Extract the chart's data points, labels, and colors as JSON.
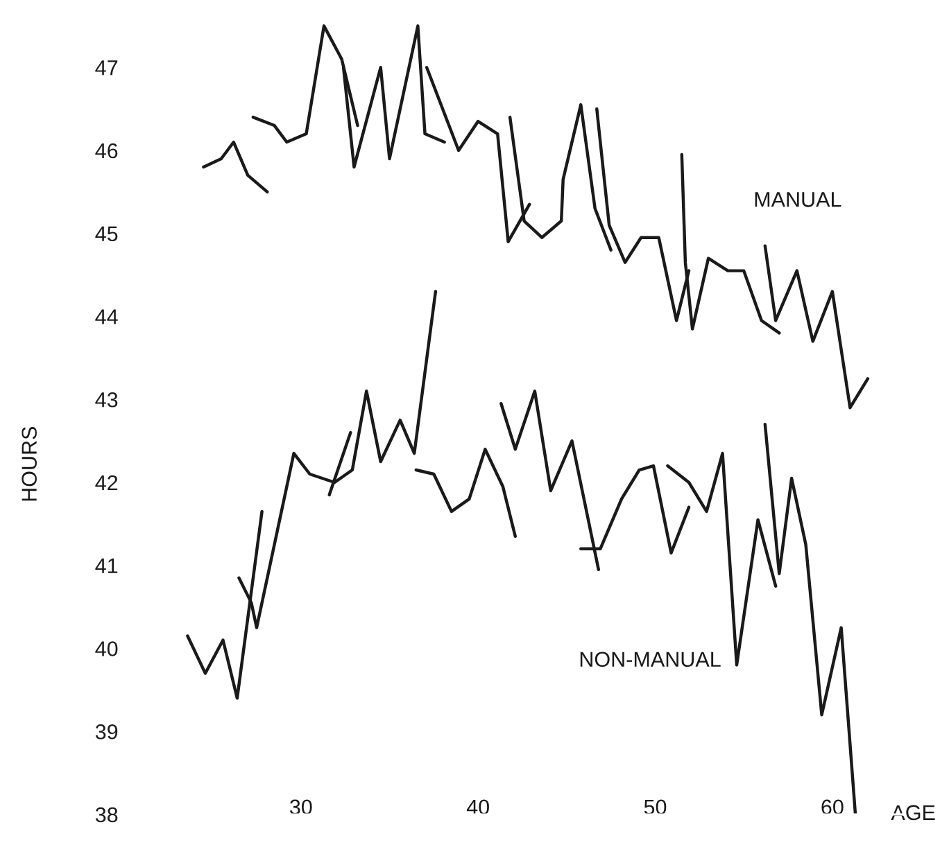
{
  "chart_data": {
    "type": "line",
    "xlabel": "AGE",
    "ylabel": "HOURS",
    "xlim": [
      21,
      64
    ],
    "ylim": [
      38,
      47.7
    ],
    "xticks": [
      30,
      40,
      50,
      60
    ],
    "yticks": [
      38,
      39,
      40,
      41,
      42,
      43,
      44,
      45,
      46,
      47
    ],
    "grid": false,
    "series": [
      {
        "color": "#1a1a1a",
        "x": [
          24.5,
          25.5,
          26.2,
          27.0,
          28.1
        ],
        "values": [
          45.8,
          45.9,
          46.1,
          45.7,
          45.5
        ]
      },
      {
        "color": "#1a1a1a",
        "x": [
          27.3,
          28.5,
          29.2,
          30.3,
          31.3,
          32.3,
          33.2
        ],
        "values": [
          46.4,
          46.3,
          46.1,
          46.2,
          47.5,
          47.1,
          46.3
        ]
      },
      {
        "color": "#1a1a1a",
        "x": [
          32.4,
          33.0,
          34.5,
          35.0,
          36.6,
          37.0,
          38.1
        ],
        "values": [
          47.0,
          45.8,
          47.0,
          45.9,
          47.5,
          46.2,
          46.1
        ]
      },
      {
        "color": "#1a1a1a",
        "x": [
          37.1,
          38.9,
          40.0,
          41.1,
          41.7,
          42.9
        ],
        "values": [
          47.0,
          46.0,
          46.35,
          46.2,
          44.9,
          45.35
        ]
      },
      {
        "color": "#1a1a1a",
        "x": [
          41.8,
          42.6,
          43.6,
          44.7,
          44.8,
          45.8,
          46.6,
          47.5
        ],
        "values": [
          46.4,
          45.15,
          44.95,
          45.15,
          45.65,
          46.55,
          45.3,
          44.8
        ]
      },
      {
        "color": "#1a1a1a",
        "x": [
          46.7,
          47.4,
          48.3,
          49.2,
          50.2,
          51.2,
          51.9
        ],
        "values": [
          46.5,
          45.1,
          44.65,
          44.95,
          44.95,
          43.95,
          44.55
        ]
      },
      {
        "color": "#1a1a1a",
        "x": [
          51.5,
          51.7,
          52.1,
          53.0,
          54.1,
          55.0,
          56.0,
          57.0
        ],
        "values": [
          45.95,
          44.65,
          43.85,
          44.7,
          44.55,
          44.55,
          43.95,
          43.8
        ]
      },
      {
        "name": "MANUAL",
        "color": "#1a1a1a",
        "x": [
          56.2,
          56.8,
          58.0,
          58.9,
          60.0,
          61.0,
          62.0
        ],
        "values": [
          44.85,
          43.95,
          44.55,
          43.7,
          44.3,
          42.9,
          43.25
        ]
      },
      {
        "color": "#1a1a1a",
        "x": [
          23.6,
          24.6,
          25.6,
          26.4,
          27.8
        ],
        "values": [
          40.15,
          39.7,
          40.1,
          39.4,
          41.65
        ]
      },
      {
        "color": "#1a1a1a",
        "x": [
          26.5,
          27.2,
          27.5,
          29.6,
          30.5,
          31.9,
          32.9,
          33.7,
          34.5,
          35.6,
          36.4,
          37.6
        ],
        "values": [
          40.85,
          40.55,
          40.25,
          42.35,
          42.1,
          42.0,
          42.15,
          43.1,
          42.25,
          42.75,
          42.35,
          44.3
        ]
      },
      {
        "color": "#1a1a1a",
        "x": [
          31.6,
          32.8
        ],
        "values": [
          41.85,
          42.6
        ]
      },
      {
        "color": "#1a1a1a",
        "x": [
          36.5,
          37.5,
          38.5,
          39.5,
          40.4,
          41.4,
          42.1
        ],
        "values": [
          42.15,
          42.1,
          41.65,
          41.8,
          42.4,
          41.95,
          41.35
        ]
      },
      {
        "color": "#1a1a1a",
        "x": [
          41.3,
          42.1,
          43.2,
          44.1,
          45.3,
          46.8
        ],
        "values": [
          42.95,
          42.4,
          43.1,
          41.9,
          42.5,
          40.95
        ]
      },
      {
        "color": "#1a1a1a",
        "x": [
          45.8,
          46.9,
          48.1,
          49.1,
          49.9,
          50.9,
          51.9
        ],
        "values": [
          41.2,
          41.2,
          41.8,
          42.15,
          42.2,
          41.15,
          41.7
        ]
      },
      {
        "name": "NON-MANUAL",
        "color": "#1a1a1a",
        "x": [
          50.7,
          51.9,
          52.9,
          53.8,
          54.6,
          55.8,
          56.8
        ],
        "values": [
          42.2,
          42.0,
          41.65,
          42.35,
          39.8,
          41.55,
          40.75
        ]
      },
      {
        "color": "#1a1a1a",
        "x": [
          56.2,
          57.0,
          57.7,
          58.5,
          59.4,
          60.5,
          61.3
        ],
        "values": [
          42.7,
          40.9,
          42.05,
          41.25,
          39.2,
          40.25,
          38.0
        ]
      }
    ]
  }
}
